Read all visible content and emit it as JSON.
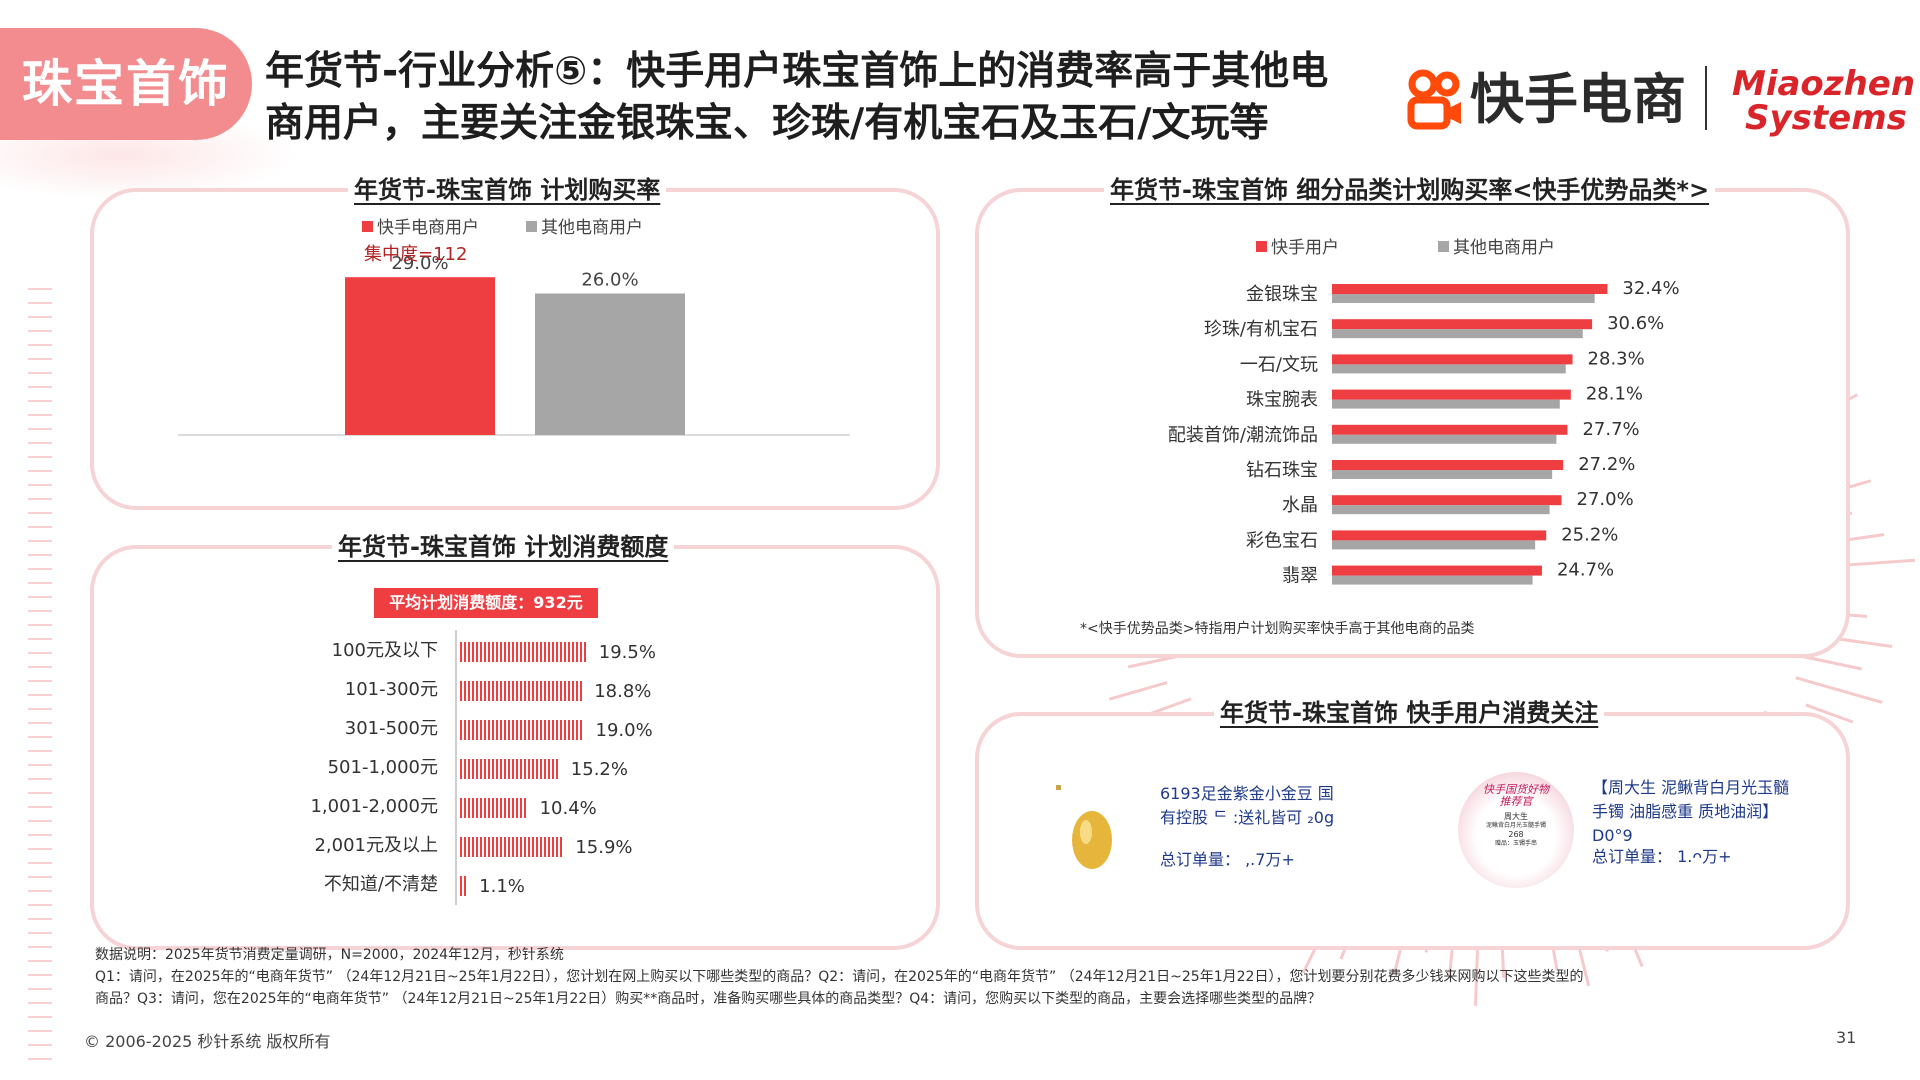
{
  "header": {
    "category_tag": "珠宝首饰",
    "title_line1": "年货节-行业分析⑤：快手用户珠宝首饰上的消费率高于其他电",
    "title_line2": "商用户，主要关注金银珠宝、珍珠/有机宝石及玉石/文玩等",
    "logo_kuaishou": "快手电商",
    "logo_miaozhen_1": "Miaozhen",
    "logo_miaozhen_2": "Systems"
  },
  "colors": {
    "kuaishou": "#ef3e42",
    "other": "#a6a6a6",
    "accent": "#d9252a"
  },
  "panel1": {
    "title": "年货节-珠宝首饰 计划购买率",
    "legend": [
      "快手电商用户",
      "其他电商用户"
    ],
    "concentration": "集中度=112",
    "category": "珠宝首饰"
  },
  "panel2": {
    "title": "年货节-珠宝首饰 计划消费额度",
    "badge": "平均计划消费额度：932元"
  },
  "panel3": {
    "title": "年货节-珠宝首饰 细分品类计划购买率<快手优势品类*>",
    "legend": [
      "快手用户",
      "其他电商用户"
    ],
    "footnote": "*<快手优势品类>特指用户计划购买率快手高于其他电商的品类"
  },
  "panel4": {
    "title": "年货节-珠宝首饰 快手用户消费关注",
    "products": [
      {
        "name_line1": "6193足金紫金小金豆 国",
        "name_line2": "有控股 ᄃ  :送礼皆可 ₂0g",
        "orders": "总订单量：  ,.7万+"
      },
      {
        "name_line1": "【周大生 泥鳅背白月光玉髓",
        "name_line2": "手镯 油脂感重 质地油润】",
        "name_line3": "D0°9",
        "orders": "总订单量：    1.ᴖ万+"
      }
    ],
    "product2_image_text": [
      "快手国货好物",
      "推荐官",
      "周大生",
      "泥鳅背白月光玉髓手镯",
      "268",
      "赠品：玉镯手串"
    ]
  },
  "chart_data": [
    {
      "type": "bar",
      "title": "年货节-珠宝首饰 计划购买率",
      "categories": [
        "珠宝首饰"
      ],
      "series": [
        {
          "name": "快手电商用户",
          "values": [
            29.0
          ]
        },
        {
          "name": "其他电商用户",
          "values": [
            26.0
          ]
        }
      ],
      "value_labels": [
        "29.0%",
        "26.0%"
      ],
      "annotation": "集中度=112",
      "ylim": [
        0,
        34
      ]
    },
    {
      "type": "bar",
      "orientation": "horizontal",
      "title": "年货节-珠宝首饰 计划消费额度",
      "categories": [
        "100元及以下",
        "101-300元",
        "301-500元",
        "501-1,000元",
        "1,001-2,000元",
        "2,001元及以上",
        "不知道/不清楚"
      ],
      "values": [
        19.5,
        18.8,
        19.0,
        15.2,
        10.4,
        15.9,
        1.1
      ],
      "value_labels": [
        "19.5%",
        "18.8%",
        "19.0%",
        "15.2%",
        "10.4%",
        "15.9%",
        "1.1%"
      ],
      "annotation": "平均计划消费额度：932元"
    },
    {
      "type": "bar",
      "orientation": "horizontal",
      "title": "年货节-珠宝首饰 细分品类计划购买率<快手优势品类*>",
      "categories": [
        "金银珠宝",
        "珍珠/有机宝石",
        "⼀石/文玩",
        "珠宝腕表",
        "配装首饰/潮流饰品",
        "钻石珠宝",
        "水晶",
        "彩色宝石",
        "翡翠"
      ],
      "series": [
        {
          "name": "快手用户",
          "values": [
            32.4,
            30.6,
            28.3,
            28.1,
            27.7,
            27.2,
            27.0,
            25.2,
            24.7
          ]
        },
        {
          "name": "其他电商用户",
          "values": [
            30.9,
            29.5,
            27.5,
            26.8,
            26.4,
            25.9,
            25.6,
            23.9,
            23.6
          ]
        }
      ],
      "value_labels": [
        "32.4%",
        "30.6%",
        "28.3%",
        "28.1%",
        "27.7%",
        "27.2%",
        "27.0%",
        "25.2%",
        "24.7%"
      ]
    }
  ],
  "notes": {
    "line1": "数据说明：2025年货节消费定量调研，N=2000，2024年12月，秒针系统",
    "line2": "Q1：请问，在2025年的“电商年货节” （24年12月21日~25年1月22日），您计划在网上购买以下哪些类型的商品？Q2：请问，在2025年的“电商年货节” （24年12月21日~25年1月22日），您计划要分别花费多少钱来网购以下这些类型的",
    "line3": "商品？Q3：请问，您在2025年的“电商年货节” （24年12月21日~25年1月22日）购买**商品时，准备购买哪些具体的商品类型？Q4：请问，您购买以下类型的商品，主要会选择哪些类型的品牌？"
  },
  "footer": {
    "copyright": "© 2006-2025 秒针系统 版权所有",
    "page_number": "31"
  }
}
